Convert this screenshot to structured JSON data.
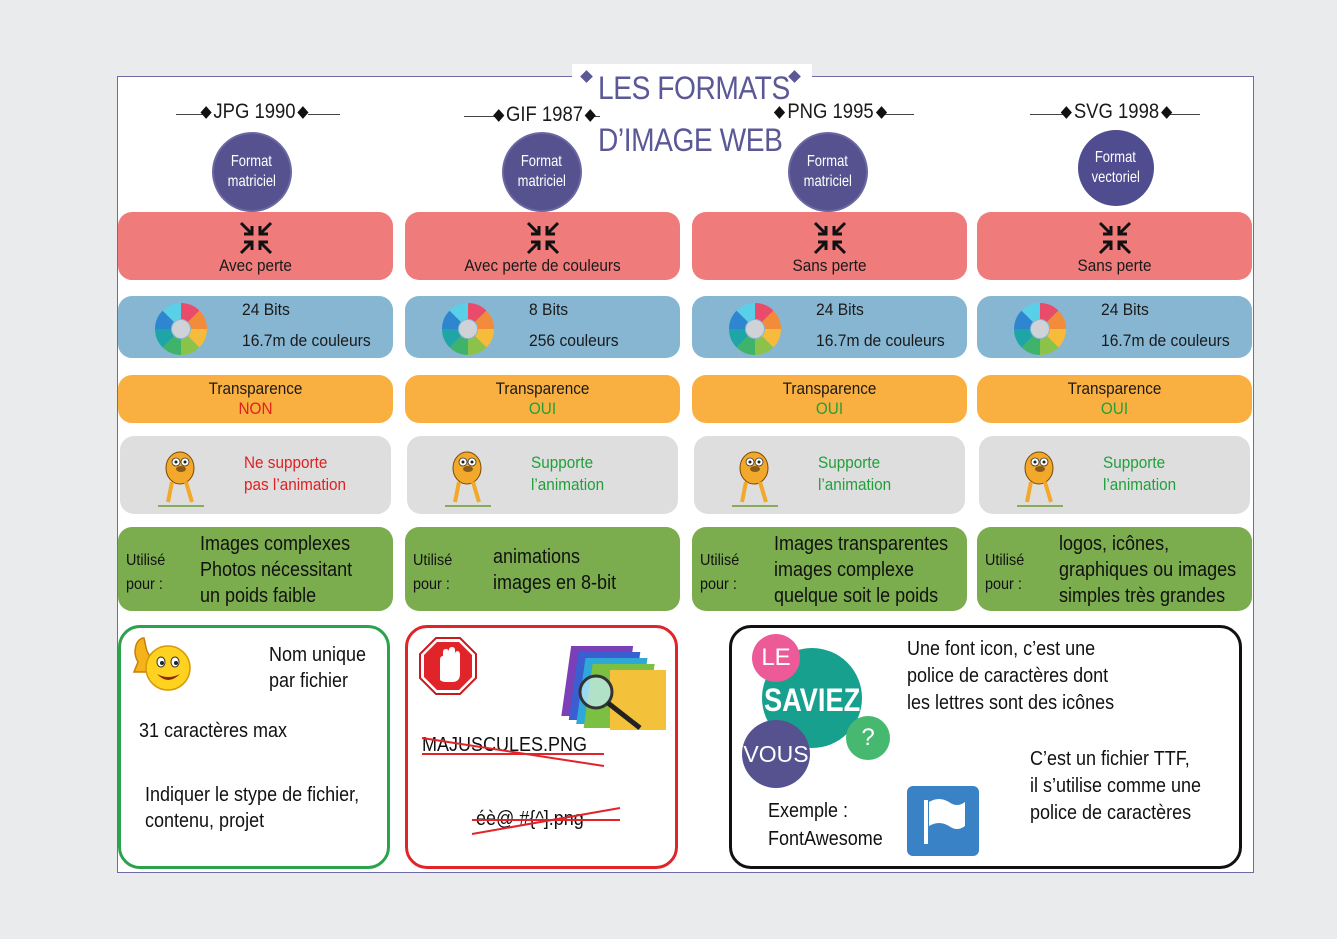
{
  "title": {
    "line1": "LES FORMATS",
    "line2": "D’IMAGE WEB"
  },
  "colors": {
    "title": "#5b5896",
    "red_row": "#ef7b7b",
    "blue_row": "#86b6d2",
    "orange_row": "#f9b040",
    "gray_row": "#dededf",
    "green_row": "#7bac4e",
    "no": "#e02020",
    "yes": "#21a03a"
  },
  "columns": [
    {
      "head": "JPG 1990",
      "type_line1": "Format",
      "type_line2": "matriciel",
      "compression": "Avec perte",
      "bits": "24 Bits",
      "colors": "16.7m de couleurs",
      "transparency_label": "Transparence",
      "transparency": "NON",
      "anim_line1": "Ne supporte",
      "anim_line2": "pas l’animation",
      "use_label_1": "Utilisé",
      "use_label_2": "pour :",
      "use_1": "Images complexes",
      "use_2": "Photos nécessitant",
      "use_3": "un poids faible"
    },
    {
      "head": "GIF 1987",
      "type_line1": "Format",
      "type_line2": "matriciel",
      "compression": "Avec perte de couleurs",
      "bits": "8 Bits",
      "colors": "256 couleurs",
      "transparency_label": "Transparence",
      "transparency": "OUI",
      "anim_line1": "Supporte",
      "anim_line2": "l’animation",
      "use_label_1": "Utilisé",
      "use_label_2": "pour :",
      "use_1": "animations",
      "use_2": "images en 8-bit",
      "use_3": ""
    },
    {
      "head": "PNG 1995",
      "type_line1": "Format",
      "type_line2": "matriciel",
      "compression": "Sans perte",
      "bits": "24 Bits",
      "colors": "16.7m de couleurs",
      "transparency_label": "Transparence",
      "transparency": "OUI",
      "anim_line1": "Supporte",
      "anim_line2": "l’animation",
      "use_label_1": "Utilisé",
      "use_label_2": "pour :",
      "use_1": "Images transparentes",
      "use_2": "images complexe",
      "use_3": "quelque soit le poids"
    },
    {
      "head": "SVG 1998",
      "type_line1": "Format",
      "type_line2": "vectoriel",
      "compression": "Sans perte",
      "bits": "24 Bits",
      "colors": "16.7m de couleurs",
      "transparency_label": "Transparence",
      "transparency": "OUI",
      "anim_line1": "Supporte",
      "anim_line2": "l’animation",
      "use_label_1": "Utilisé",
      "use_label_2": "pour :",
      "use_1": "logos, icônes,",
      "use_2": "graphiques ou images",
      "use_3": "simples très grandes"
    }
  ],
  "tips": {
    "name_1": "Nom unique",
    "name_2": "par fichier",
    "max_chars": "31 caractères max",
    "indicate_1": "Indiquer le stype de fichier,",
    "indicate_2": "contenu, projet"
  },
  "donts": {
    "bad1": "MAJUSCULES.PNG",
    "bad2": "éè@ #{^].png"
  },
  "saviez": {
    "le": "LE",
    "saviez": "SAVIEZ",
    "vous": "VOUS",
    "q": "?",
    "p1_1": "Une font icon, c’est une",
    "p1_2": "police de caractères dont",
    "p1_3": "les lettres sont des icônes",
    "p2_1": "C’est un fichier TTF,",
    "p2_2": "il s’utilise comme une",
    "p2_3": "police de caractères",
    "ex_1": "Exemple :",
    "ex_2": "FontAwesome"
  }
}
